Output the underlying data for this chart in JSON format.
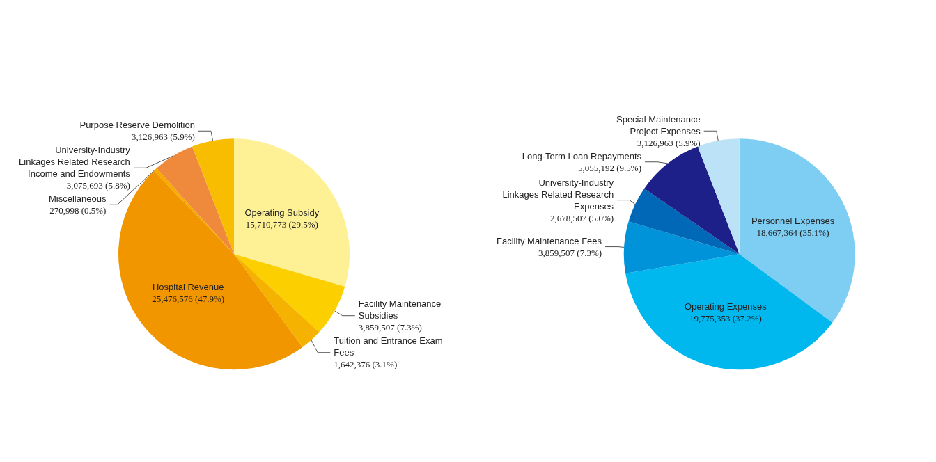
{
  "chart_data": [
    {
      "type": "pie",
      "categories": [
        "Operating Subsidy",
        "Facility Maintenance Subsidies",
        "Tuition and Entrance Exam Fees",
        "Hospital Revenue",
        "Miscellaneous",
        "University-Industry Linkages Related Research Income and Endowments",
        "Purpose Reserve Demolition"
      ],
      "values": [
        15710773,
        3859507,
        1642376,
        25476576,
        270998,
        3075693,
        3126963
      ],
      "value_labels": [
        "15,710,773 (29.5%)",
        "3,859,507 (7.3%)",
        "1,642,376 (3.1%)",
        "25,476,576 (47.9%)",
        "270,998 (0.5%)",
        "3,075,693 (5.8%)",
        "3,126,963 (5.9%)"
      ],
      "colors": [
        "#fef095",
        "#fbcf00",
        "#f5b200",
        "#f29600",
        "#f6ab00",
        "#ef8a3c",
        "#f8bd00"
      ]
    },
    {
      "type": "pie",
      "categories": [
        "Personnel Expenses",
        "Operating Expenses",
        "Facility Maintenance Fees",
        "University-Industry Linkages Related Research Expenses",
        "Long-Term Loan Repayments",
        "Special Maintenance Project Expenses"
      ],
      "values": [
        18667364,
        19775353,
        3859507,
        2678507,
        5055192,
        3126963
      ],
      "value_labels": [
        "18,667,364 (35.1%)",
        "19,775,353 (37.2%)",
        "3,859,507 (7.3%)",
        "2,678,507 (5.0%)",
        "5,055,192 (9.5%)",
        "3,126,963 (5.9%)"
      ],
      "colors": [
        "#7ecef4",
        "#00b7ee",
        "#0093d9",
        "#0068b7",
        "#1d2088",
        "#bce2f8"
      ]
    }
  ]
}
